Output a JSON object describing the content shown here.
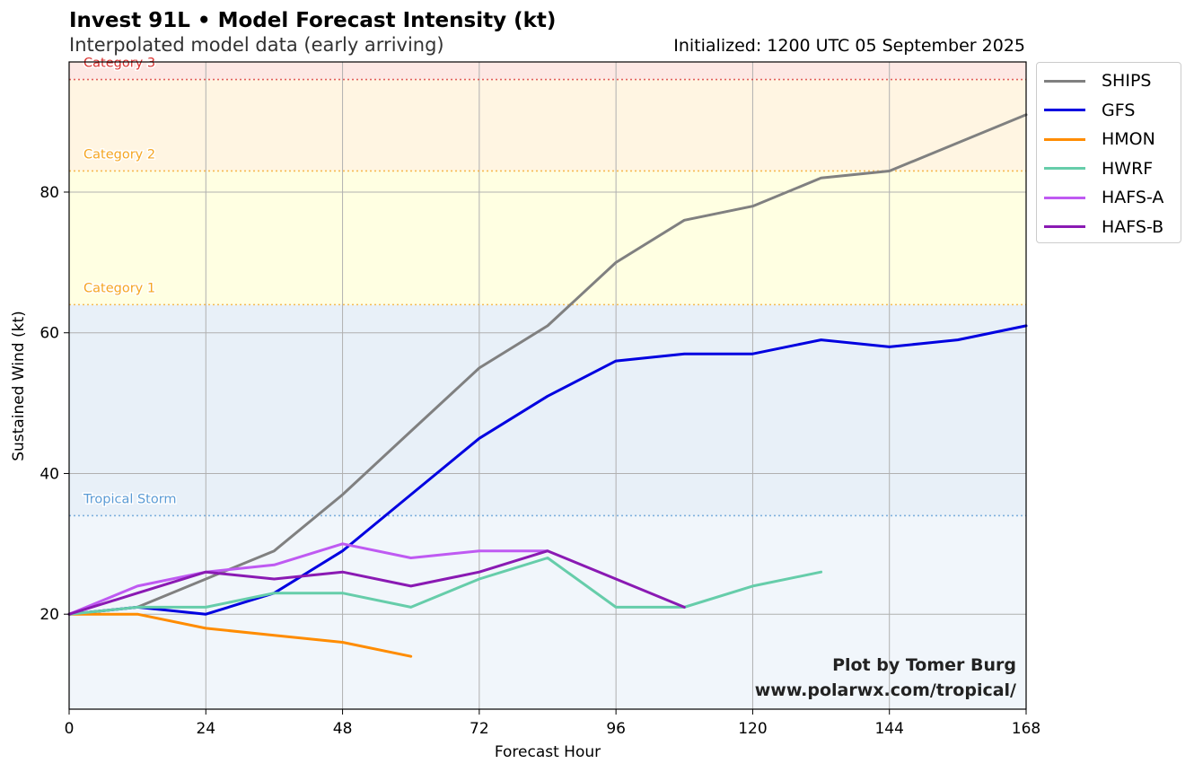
{
  "header": {
    "title": "Invest 91L • Model Forecast Intensity (kt)",
    "subtitle": "Interpolated model data (early arriving)",
    "initialized": "Initialized: 1200 UTC 05 September 2025"
  },
  "credit": {
    "line1": "Plot by Tomer Burg",
    "line2": "www.polarwx.com/tropical/"
  },
  "chart_data": {
    "type": "line",
    "xlabel": "Forecast Hour",
    "ylabel": "Sustained Wind (kt)",
    "xlim": [
      0,
      168
    ],
    "ylim": [
      6.5,
      98.5
    ],
    "xticks": [
      0,
      24,
      48,
      72,
      96,
      120,
      144,
      168
    ],
    "yticks": [
      20,
      40,
      60,
      80
    ],
    "grid": true,
    "legend_position": "outside-top-right",
    "categories": [
      {
        "label": "Tropical Storm",
        "threshold": 34,
        "color": "#5b9bd5"
      },
      {
        "label": "Category 1",
        "threshold": 64,
        "color": "#f5a623"
      },
      {
        "label": "Category 2",
        "threshold": 83,
        "color": "#f5a623"
      },
      {
        "label": "Category 3",
        "threshold": 96,
        "color": "#d9322f"
      }
    ],
    "bands": [
      {
        "from": 6.5,
        "to": 34,
        "color": "#f1f6fb"
      },
      {
        "from": 34,
        "to": 64,
        "color": "#e8f0f8"
      },
      {
        "from": 64,
        "to": 83,
        "color": "#ffffe2"
      },
      {
        "from": 83,
        "to": 96,
        "color": "#fff5e2"
      },
      {
        "from": 96,
        "to": 98.5,
        "color": "#fde8e4"
      }
    ],
    "series": [
      {
        "name": "SHIPS",
        "color": "#808080",
        "x": [
          0,
          12,
          24,
          36,
          48,
          60,
          72,
          84,
          96,
          108,
          120,
          132,
          144,
          156,
          168
        ],
        "values": [
          20,
          21,
          25,
          29,
          37,
          46,
          55,
          61,
          70,
          76,
          78,
          82,
          83,
          87,
          91
        ]
      },
      {
        "name": "GFS",
        "color": "#0000e0",
        "x": [
          0,
          12,
          24,
          36,
          48,
          60,
          72,
          84,
          96,
          108,
          120,
          132,
          144,
          156,
          168
        ],
        "values": [
          20,
          21,
          20,
          23,
          29,
          37,
          45,
          51,
          56,
          57,
          57,
          59,
          58,
          59,
          61
        ]
      },
      {
        "name": "HMON",
        "color": "#ff8c00",
        "x": [
          0,
          12,
          24,
          36,
          48,
          60
        ],
        "values": [
          20,
          20,
          18,
          17,
          16,
          14
        ]
      },
      {
        "name": "HWRF",
        "color": "#66cdaa",
        "x": [
          0,
          12,
          24,
          36,
          48,
          60,
          72,
          84,
          96,
          108,
          120,
          132
        ],
        "values": [
          20,
          21,
          21,
          23,
          23,
          21,
          25,
          28,
          21,
          21,
          24,
          26
        ]
      },
      {
        "name": "HAFS-A",
        "color": "#bf5af2",
        "x": [
          0,
          12,
          24,
          36,
          48,
          60,
          72,
          84
        ],
        "values": [
          20,
          24,
          26,
          27,
          30,
          28,
          29,
          29
        ]
      },
      {
        "name": "HAFS-B",
        "color": "#8a1ab3",
        "x": [
          0,
          12,
          24,
          36,
          48,
          60,
          72,
          84,
          96,
          108
        ],
        "values": [
          20,
          23,
          26,
          25,
          26,
          24,
          26,
          29,
          25,
          21
        ]
      }
    ]
  }
}
